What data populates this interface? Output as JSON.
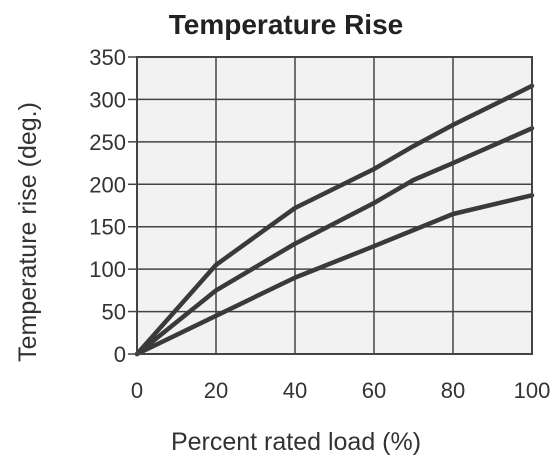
{
  "chart_data": {
    "type": "line",
    "title": "Temperature Rise",
    "xlabel": "Percent rated load (%)",
    "ylabel": "Temperature rise (deg.)",
    "xlim": [
      0,
      100
    ],
    "ylim": [
      0,
      350
    ],
    "x_ticks": [
      "0",
      "20",
      "40",
      "60",
      "80",
      "100"
    ],
    "y_ticks": [
      "0",
      "50",
      "100",
      "150",
      "200",
      "250",
      "300",
      "350"
    ],
    "grid": true,
    "series": [
      {
        "x": [
          0,
          20,
          40,
          60,
          70,
          80,
          100
        ],
        "values": [
          0,
          105,
          172,
          218,
          245,
          270,
          316
        ]
      },
      {
        "x": [
          0,
          20,
          40,
          60,
          70,
          80,
          100
        ],
        "values": [
          0,
          75,
          130,
          178,
          205,
          225,
          266
        ]
      },
      {
        "x": [
          0,
          20,
          40,
          60,
          80,
          100
        ],
        "values": [
          0,
          45,
          90,
          127,
          165,
          187
        ]
      }
    ],
    "colors": {
      "plot_background": "#f2f2f2",
      "grid": "#444444",
      "line": "#3a3a3a",
      "text": "#333333"
    }
  }
}
